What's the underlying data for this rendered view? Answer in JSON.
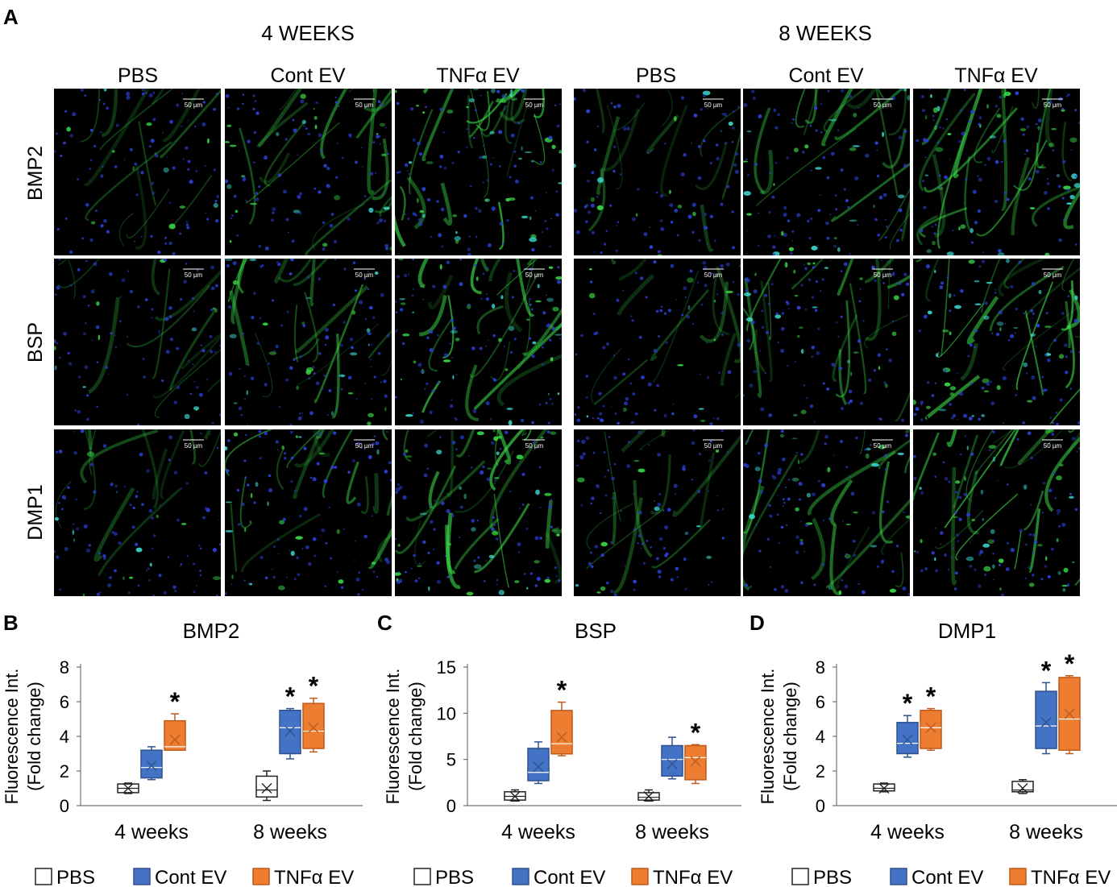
{
  "panel_letters": {
    "a": "A",
    "b": "B",
    "c": "C",
    "d": "D"
  },
  "panel_a": {
    "timepoints": [
      "4 WEEKS",
      "8 WEEKS"
    ],
    "columns": [
      "PBS",
      "Cont EV",
      "TNFα EV",
      "PBS",
      "Cont EV",
      "TNFα EV"
    ],
    "rows": [
      "BMP2",
      "BSP",
      "DMP1"
    ],
    "scale_bar": "50 µm",
    "colors": {
      "nuclei": "#2a3fd0",
      "marker": "#3be04a",
      "overlap": "#40e0d8",
      "background": "#000000"
    }
  },
  "colors": {
    "pbs": "#ffffff",
    "cont_ev": "#4472c4",
    "tnfa_ev": "#ed7d31"
  },
  "chart_data": [
    {
      "type": "box",
      "title": "BMP2",
      "ylabel": "Fluorescence Int.",
      "ylabel2": "(Fold change)",
      "ylim": [
        0,
        8
      ],
      "yticks": [
        "0",
        "2",
        "4",
        "6",
        "8"
      ],
      "categories": [
        "4 weeks",
        "8 weeks"
      ],
      "legend": [
        "PBS",
        "Cont EV",
        "TNFα EV"
      ],
      "significance": "*",
      "series": [
        {
          "name": "PBS",
          "stats": [
            {
              "min": 0.7,
              "q1": 0.75,
              "median": 1.0,
              "q3": 1.25,
              "max": 1.3,
              "mean": 1.0,
              "sig": false
            },
            {
              "min": 0.3,
              "q1": 0.5,
              "median": 0.9,
              "q3": 1.7,
              "max": 2.0,
              "mean": 1.0,
              "sig": false
            }
          ]
        },
        {
          "name": "Cont EV",
          "stats": [
            {
              "min": 1.5,
              "q1": 1.6,
              "median": 2.2,
              "q3": 3.2,
              "max": 3.4,
              "mean": 2.3,
              "sig": false
            },
            {
              "min": 2.7,
              "q1": 3.0,
              "median": 4.5,
              "q3": 5.5,
              "max": 5.6,
              "mean": 4.3,
              "sig": true
            }
          ]
        },
        {
          "name": "TNFα EV",
          "stats": [
            {
              "min": 3.2,
              "q1": 3.2,
              "median": 3.4,
              "q3": 4.9,
              "max": 5.3,
              "mean": 3.8,
              "sig": true
            },
            {
              "min": 3.1,
              "q1": 3.3,
              "median": 4.3,
              "q3": 5.9,
              "max": 6.2,
              "mean": 4.5,
              "sig": true
            }
          ]
        }
      ]
    },
    {
      "type": "box",
      "title": "BSP",
      "ylabel": "Fluorescence Int.",
      "ylabel2": "(Fold change)",
      "ylim": [
        0,
        15
      ],
      "yticks": [
        "0",
        "5",
        "10",
        "15"
      ],
      "categories": [
        "4 weeks",
        "8 weeks"
      ],
      "legend": [
        "PBS",
        "Cont EV",
        "TNFα EV"
      ],
      "significance": "*",
      "series": [
        {
          "name": "PBS",
          "stats": [
            {
              "min": 0.5,
              "q1": 0.6,
              "median": 1.0,
              "q3": 1.5,
              "max": 1.7,
              "mean": 1.0,
              "sig": false
            },
            {
              "min": 0.5,
              "q1": 0.6,
              "median": 0.9,
              "q3": 1.4,
              "max": 1.7,
              "mean": 1.0,
              "sig": false
            }
          ]
        },
        {
          "name": "Cont EV",
          "stats": [
            {
              "min": 2.4,
              "q1": 2.7,
              "median": 3.6,
              "q3": 6.2,
              "max": 6.9,
              "mean": 4.2,
              "sig": false
            },
            {
              "min": 2.9,
              "q1": 3.2,
              "median": 5.0,
              "q3": 6.5,
              "max": 7.4,
              "mean": 4.5,
              "sig": false
            }
          ]
        },
        {
          "name": "TNFα EV",
          "stats": [
            {
              "min": 5.4,
              "q1": 5.6,
              "median": 6.7,
              "q3": 10.3,
              "max": 11.2,
              "mean": 7.4,
              "sig": true
            },
            {
              "min": 2.4,
              "q1": 2.8,
              "median": 5.2,
              "q3": 6.5,
              "max": 6.6,
              "mean": 4.8,
              "sig": true
            }
          ]
        }
      ]
    },
    {
      "type": "box",
      "title": "DMP1",
      "ylabel": "Fluorescence Int.",
      "ylabel2": "(Fold change)",
      "ylim": [
        0,
        8
      ],
      "yticks": [
        "0",
        "2",
        "4",
        "6",
        "8"
      ],
      "categories": [
        "4 weeks",
        "8 weeks"
      ],
      "legend": [
        "PBS",
        "Cont EV",
        "TNFα EV"
      ],
      "significance": "*",
      "series": [
        {
          "name": "PBS",
          "stats": [
            {
              "min": 0.8,
              "q1": 0.85,
              "median": 1.0,
              "q3": 1.25,
              "max": 1.3,
              "mean": 1.0,
              "sig": false
            },
            {
              "min": 0.7,
              "q1": 0.8,
              "median": 0.9,
              "q3": 1.4,
              "max": 1.5,
              "mean": 1.0,
              "sig": false
            }
          ]
        },
        {
          "name": "Cont EV",
          "stats": [
            {
              "min": 2.8,
              "q1": 3.0,
              "median": 3.6,
              "q3": 4.8,
              "max": 5.2,
              "mean": 3.8,
              "sig": true
            },
            {
              "min": 3.0,
              "q1": 3.3,
              "median": 4.6,
              "q3": 6.6,
              "max": 7.1,
              "mean": 4.8,
              "sig": true
            }
          ]
        },
        {
          "name": "TNFα EV",
          "stats": [
            {
              "min": 3.2,
              "q1": 3.3,
              "median": 4.5,
              "q3": 5.5,
              "max": 5.6,
              "mean": 4.5,
              "sig": true
            },
            {
              "min": 3.0,
              "q1": 3.2,
              "median": 5.0,
              "q3": 7.4,
              "max": 7.5,
              "mean": 5.3,
              "sig": true
            }
          ]
        }
      ]
    }
  ]
}
